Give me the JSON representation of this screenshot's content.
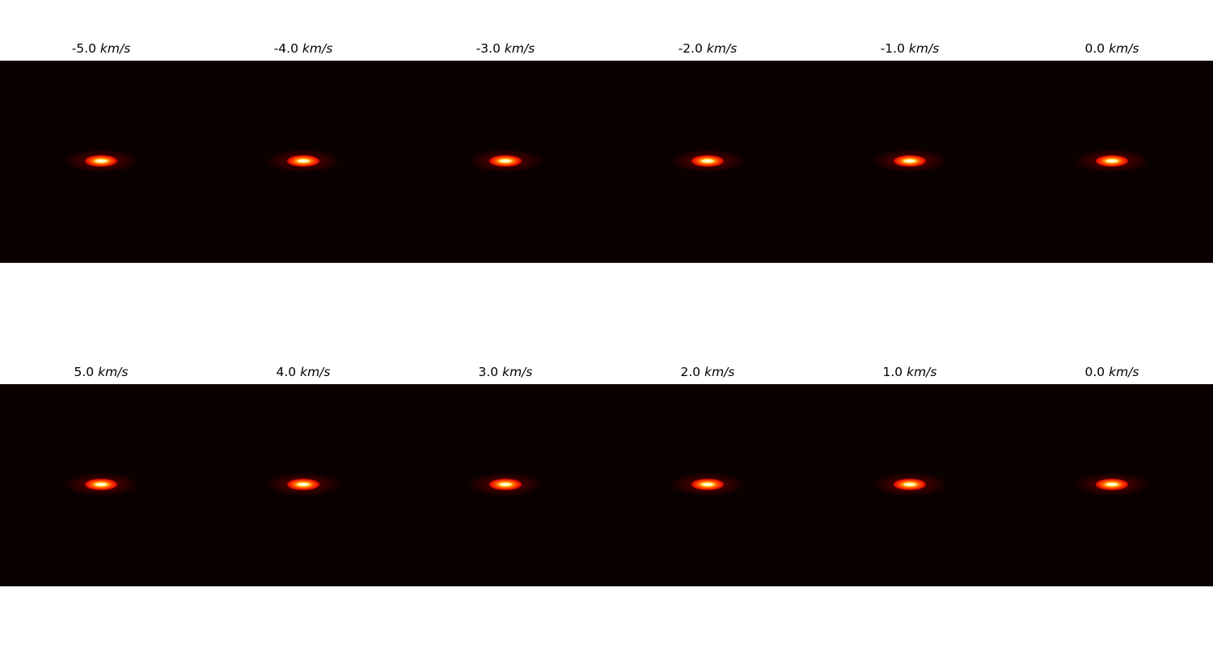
{
  "figure": {
    "colormap": "hot",
    "background_color": "#0b0000",
    "rows": [
      {
        "panels": [
          {
            "value": "-5.0",
            "unit": "km/s"
          },
          {
            "value": "-4.0",
            "unit": "km/s"
          },
          {
            "value": "-3.0",
            "unit": "km/s"
          },
          {
            "value": "-2.0",
            "unit": "km/s"
          },
          {
            "value": "-1.0",
            "unit": "km/s"
          },
          {
            "value": "0.0",
            "unit": "km/s"
          }
        ]
      },
      {
        "panels": [
          {
            "value": "5.0",
            "unit": "km/s"
          },
          {
            "value": "4.0",
            "unit": "km/s"
          },
          {
            "value": "3.0",
            "unit": "km/s"
          },
          {
            "value": "2.0",
            "unit": "km/s"
          },
          {
            "value": "1.0",
            "unit": "km/s"
          },
          {
            "value": "0.0",
            "unit": "km/s"
          }
        ]
      }
    ]
  }
}
